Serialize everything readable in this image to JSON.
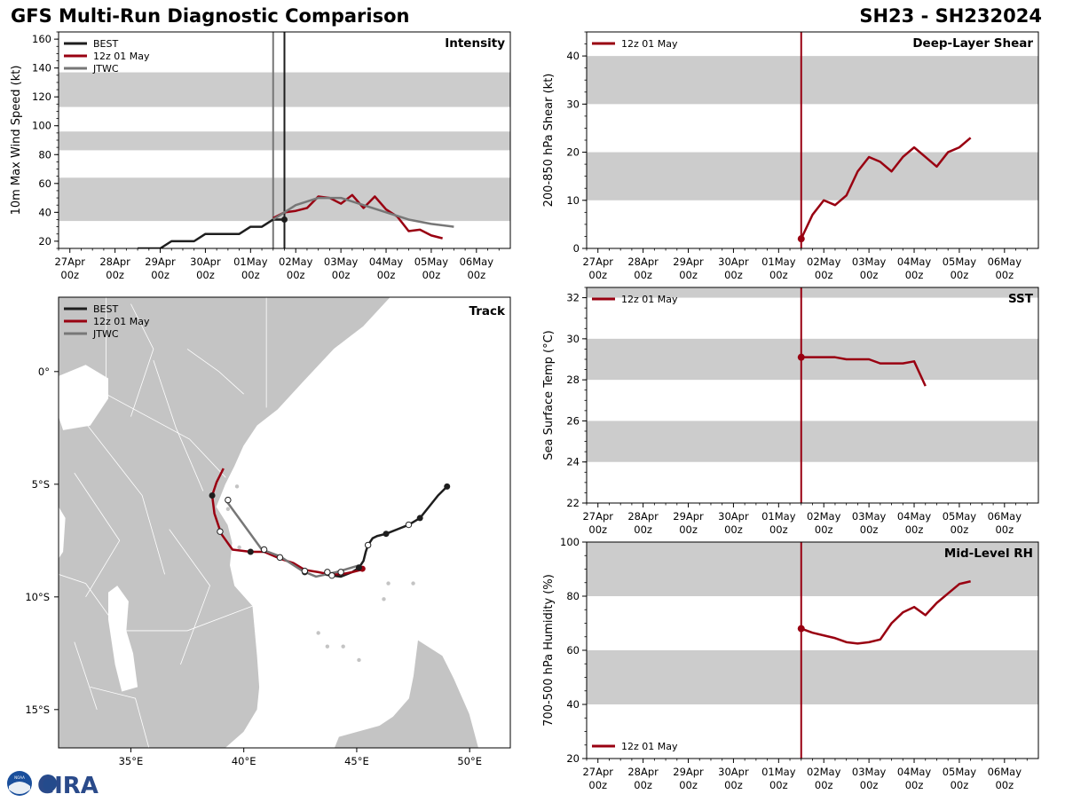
{
  "header": {
    "title": "GFS Multi-Run Diagnostic Comparison",
    "storm_id": "SH23 - SH232024"
  },
  "logo": {
    "text": "CIRA",
    "seal_text": "NOAA"
  },
  "colors": {
    "best": "#1e1e1e",
    "run": "#990011",
    "jtwc": "#777777",
    "band": "#cccccc",
    "land": "#c4c4c4",
    "border": "#ffffff"
  },
  "chart_data": [
    {
      "id": "intensity",
      "type": "line",
      "title": "Intensity",
      "ylabel": "10m Max Wind Speed (kt)",
      "xlim": [
        -0.25,
        9.75
      ],
      "ylim": [
        15,
        165
      ],
      "yticks": [
        20,
        40,
        60,
        80,
        100,
        120,
        140,
        160
      ],
      "xticks": [
        0,
        1,
        2,
        3,
        4,
        5,
        6,
        7,
        8,
        9
      ],
      "xticklabels": [
        "27Apr",
        "28Apr",
        "29Apr",
        "30Apr",
        "01May",
        "02May",
        "03May",
        "04May",
        "05May",
        "06May"
      ],
      "xticklabels2": [
        "00z",
        "00z",
        "00z",
        "00z",
        "00z",
        "00z",
        "00z",
        "00z",
        "00z",
        "00z"
      ],
      "bands": [
        [
          34,
          64
        ],
        [
          83,
          96
        ],
        [
          113,
          137
        ]
      ],
      "vlines": [
        {
          "x": 4.5,
          "color": "#777777"
        },
        {
          "x": 4.75,
          "color": "#1e1e1e"
        }
      ],
      "legend": [
        "BEST",
        "12z 01 May",
        "JTWC"
      ],
      "series": [
        {
          "name": "BEST",
          "x": [
            1.5,
            2,
            2.25,
            2.5,
            2.75,
            3,
            3.25,
            3.5,
            3.75,
            4,
            4.25,
            4.5,
            4.75
          ],
          "y": [
            15,
            15,
            20,
            20,
            20,
            25,
            25,
            25,
            25,
            30,
            30,
            35,
            35
          ],
          "end_marker": true
        },
        {
          "name": "12z 01 May",
          "x": [
            4.5,
            4.75,
            5,
            5.25,
            5.5,
            5.75,
            6,
            6.25,
            6.5,
            6.75,
            7,
            7.25,
            7.5,
            7.75,
            8,
            8.25
          ],
          "y": [
            36,
            40,
            41,
            43,
            51,
            50,
            46,
            52,
            43,
            51,
            42,
            37,
            27,
            28,
            24,
            22
          ]
        },
        {
          "name": "JTWC",
          "x": [
            4.5,
            5,
            5.5,
            6,
            6.5,
            7,
            7.5,
            8,
            8.5
          ],
          "y": [
            35,
            45,
            50,
            50,
            45,
            40,
            35,
            32,
            30
          ]
        }
      ]
    },
    {
      "id": "shear",
      "type": "line",
      "title": "Deep-Layer Shear",
      "ylabel": "200-850 hPa Shear (kt)",
      "xlim": [
        -0.25,
        9.75
      ],
      "ylim": [
        0,
        45
      ],
      "yticks": [
        0,
        10,
        20,
        30,
        40
      ],
      "xticks": [
        0,
        1,
        2,
        3,
        4,
        5,
        6,
        7,
        8,
        9
      ],
      "xticklabels": [
        "27Apr",
        "28Apr",
        "29Apr",
        "30Apr",
        "01May",
        "02May",
        "03May",
        "04May",
        "05May",
        "06May"
      ],
      "xticklabels2": [
        "00z",
        "00z",
        "00z",
        "00z",
        "00z",
        "00z",
        "00z",
        "00z",
        "00z",
        "00z"
      ],
      "bands": [
        [
          10,
          20
        ],
        [
          30,
          40
        ]
      ],
      "vlines": [
        {
          "x": 4.5,
          "color": "#990011"
        }
      ],
      "legend": [
        "12z 01 May"
      ],
      "series": [
        {
          "name": "12z 01 May",
          "x": [
            4.5,
            4.75,
            5,
            5.25,
            5.5,
            5.75,
            6,
            6.25,
            6.5,
            6.75,
            7,
            7.25,
            7.5,
            7.75,
            8,
            8.25
          ],
          "y": [
            2,
            7,
            10,
            9,
            11,
            16,
            19,
            18,
            16,
            19,
            21,
            19,
            17,
            20,
            21,
            23
          ],
          "start_marker": true
        }
      ]
    },
    {
      "id": "sst",
      "type": "line",
      "title": "SST",
      "ylabel": "Sea Surface Temp (°C)",
      "xlim": [
        -0.25,
        9.75
      ],
      "ylim": [
        22,
        32.5
      ],
      "yticks": [
        22,
        24,
        26,
        28,
        30,
        32
      ],
      "xticks": [
        0,
        1,
        2,
        3,
        4,
        5,
        6,
        7,
        8,
        9
      ],
      "xticklabels": [
        "27Apr",
        "28Apr",
        "29Apr",
        "30Apr",
        "01May",
        "02May",
        "03May",
        "04May",
        "05May",
        "06May"
      ],
      "xticklabels2": [
        "00z",
        "00z",
        "00z",
        "00z",
        "00z",
        "00z",
        "00z",
        "00z",
        "00z",
        "00z"
      ],
      "bands": [
        [
          24,
          26
        ],
        [
          28,
          30
        ],
        [
          32,
          34
        ]
      ],
      "vlines": [
        {
          "x": 4.5,
          "color": "#990011"
        }
      ],
      "legend": [
        "12z 01 May"
      ],
      "series": [
        {
          "name": "12z 01 May",
          "x": [
            4.5,
            4.75,
            5,
            5.25,
            5.5,
            5.75,
            6,
            6.25,
            6.5,
            6.75,
            7,
            7.25
          ],
          "y": [
            29.1,
            29.1,
            29.1,
            29.1,
            29.0,
            29.0,
            29.0,
            28.8,
            28.8,
            28.8,
            28.9,
            27.7
          ],
          "start_marker": true
        }
      ]
    },
    {
      "id": "rh",
      "type": "line",
      "title": "Mid-Level RH",
      "ylabel": "700-500 hPa Humidity (%)",
      "xlim": [
        -0.25,
        9.75
      ],
      "ylim": [
        20,
        100
      ],
      "yticks": [
        20,
        40,
        60,
        80,
        100
      ],
      "xticks": [
        0,
        1,
        2,
        3,
        4,
        5,
        6,
        7,
        8,
        9
      ],
      "xticklabels": [
        "27Apr",
        "28Apr",
        "29Apr",
        "30Apr",
        "01May",
        "02May",
        "03May",
        "04May",
        "05May",
        "06May"
      ],
      "xticklabels2": [
        "00z",
        "00z",
        "00z",
        "00z",
        "00z",
        "00z",
        "00z",
        "00z",
        "00z",
        "00z"
      ],
      "bands": [
        [
          40,
          60
        ],
        [
          80,
          100
        ]
      ],
      "vlines": [
        {
          "x": 4.5,
          "color": "#990011"
        }
      ],
      "legend": [
        "12z 01 May"
      ],
      "legend_pos": "bottom-left",
      "series": [
        {
          "name": "12z 01 May",
          "x": [
            4.5,
            4.75,
            5,
            5.25,
            5.5,
            5.75,
            6,
            6.25,
            6.5,
            6.75,
            7,
            7.25,
            7.5,
            7.75,
            8,
            8.25
          ],
          "y": [
            68,
            66.5,
            65.5,
            64.5,
            63,
            62.5,
            63,
            64,
            70,
            74,
            76,
            73,
            77.5,
            81,
            84.5,
            85.5
          ],
          "start_marker": true
        }
      ]
    },
    {
      "id": "track",
      "type": "scatter",
      "title": "Track",
      "xlim": [
        31.8,
        51.8
      ],
      "ylim": [
        -16.7,
        3.3
      ],
      "xticks": [
        35,
        40,
        45,
        50
      ],
      "xticklabels": [
        "35°E",
        "40°E",
        "45°E",
        "50°E"
      ],
      "yticks": [
        0,
        -5,
        -10,
        -15
      ],
      "yticklabels": [
        "0°",
        "5°S",
        "10°S",
        "15°S"
      ],
      "legend": [
        "BEST",
        "12z 01 May",
        "JTWC"
      ],
      "series": [
        {
          "name": "BEST",
          "lon": [
            49.0,
            48.6,
            48.2,
            47.8,
            47.3,
            46.8,
            46.3,
            45.9,
            45.7,
            45.5,
            45.4,
            45.3,
            45.1,
            44.8,
            44.3,
            43.9,
            43.5
          ],
          "lat": [
            -5.1,
            -5.5,
            -6.0,
            -6.5,
            -6.8,
            -7.0,
            -7.2,
            -7.3,
            -7.4,
            -7.7,
            -8.0,
            -8.4,
            -8.7,
            -8.9,
            -9.1,
            -9.05,
            -9.0
          ],
          "open": [
            false,
            false,
            false,
            false,
            true,
            false,
            false,
            false,
            false,
            true,
            false,
            false,
            false,
            false,
            false,
            true,
            false
          ]
        },
        {
          "name": "12z 01 May",
          "lon": [
            45.2,
            44.8,
            44.3,
            43.8,
            43.3,
            42.7,
            42.2,
            41.6,
            40.9,
            40.3,
            39.5,
            39.0,
            38.7,
            38.6,
            38.8,
            39.1
          ],
          "lat": [
            -8.8,
            -8.9,
            -9.0,
            -9.0,
            -8.9,
            -8.8,
            -8.5,
            -8.3,
            -8.0,
            -8.0,
            -7.9,
            -7.2,
            -6.3,
            -5.5,
            -4.9,
            -4.3
          ],
          "dots": [
            -1,
            -1,
            -1,
            -1,
            -1,
            -1,
            -1,
            -1,
            -1,
            -1,
            -1,
            -1,
            -1,
            -1,
            -1,
            -1
          ]
        },
        {
          "name": "JTWC",
          "lon": [
            45.1,
            44.1,
            43.2,
            42.6,
            41.6,
            40.8,
            40.0,
            39.2
          ],
          "lat": [
            -8.6,
            -8.9,
            -9.1,
            -8.85,
            -8.2,
            -7.9,
            -6.8,
            -5.7
          ]
        }
      ],
      "markers": [
        {
          "lon": 45.25,
          "lat": -8.75,
          "kind": "run"
        },
        {
          "lon": 42.7,
          "lat": -8.9,
          "kind": "best"
        },
        {
          "lon": 43.7,
          "lat": -8.9,
          "kind": "open"
        },
        {
          "lon": 40.3,
          "lat": -8.0,
          "kind": "best"
        },
        {
          "lon": 40.9,
          "lat": -7.9,
          "kind": "open"
        },
        {
          "lon": 38.6,
          "lat": -5.5,
          "kind": "best"
        },
        {
          "lon": 38.95,
          "lat": -7.1,
          "kind": "open"
        },
        {
          "lon": 39.3,
          "lat": -5.7,
          "kind": "open"
        },
        {
          "lon": 42.7,
          "lat": -8.85,
          "kind": "open"
        },
        {
          "lon": 44.3,
          "lat": -8.9,
          "kind": "open"
        },
        {
          "lon": 41.6,
          "lat": -8.25,
          "kind": "open"
        }
      ]
    }
  ]
}
